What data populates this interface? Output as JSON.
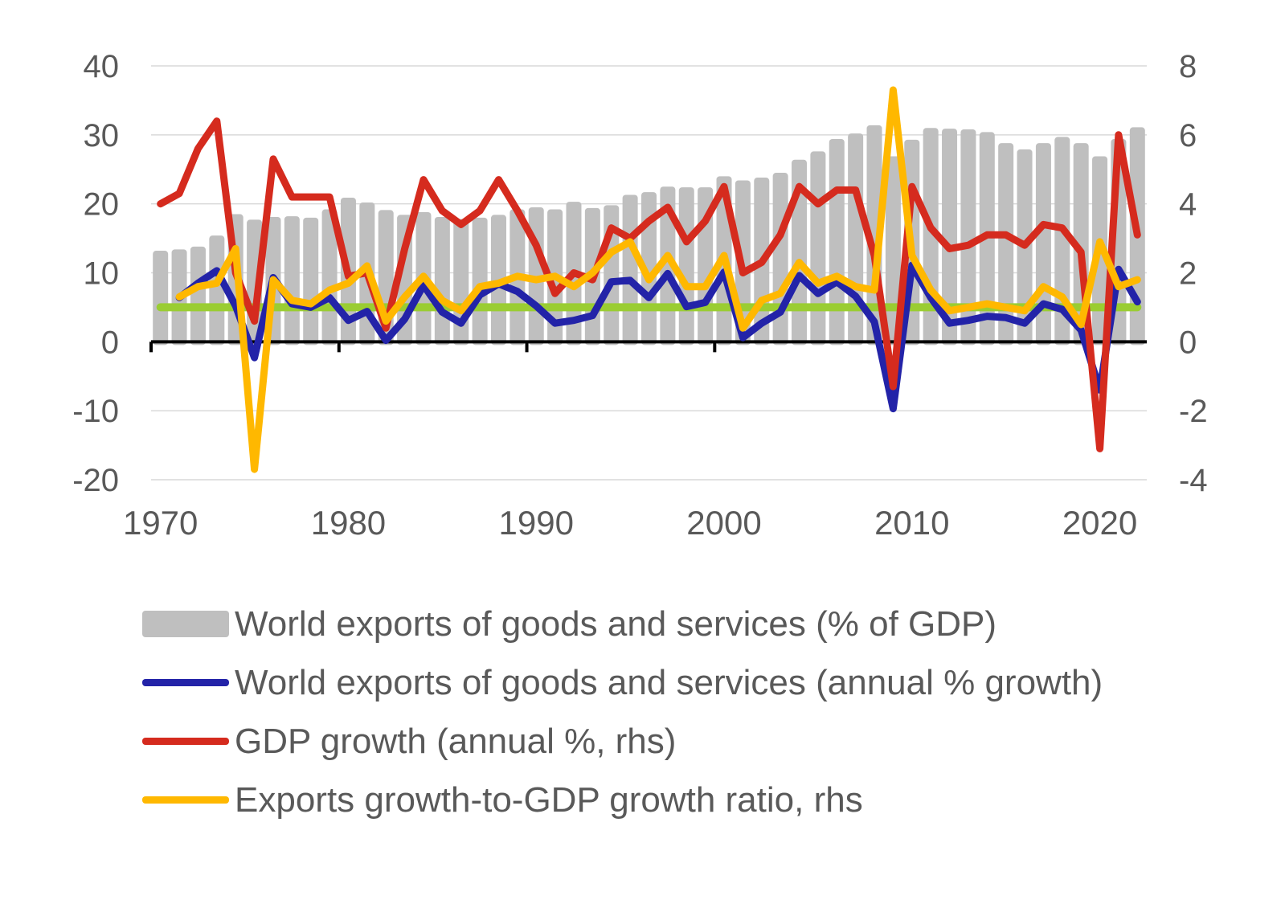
{
  "chart_data": {
    "type": "bar+line",
    "title": "",
    "xlabel": "",
    "ylabel": "",
    "y_left_lim": [
      -20,
      40
    ],
    "y_right_lim": [
      -4,
      8
    ],
    "y_left_ticks": [
      "40",
      "30",
      "20",
      "10",
      "0",
      "-10",
      "-20"
    ],
    "y_right_ticks": [
      "8",
      "6",
      "4",
      "2",
      "0",
      "-2",
      "-4"
    ],
    "x_tick_labels": [
      "1970",
      "1980",
      "1990",
      "2000",
      "2010",
      "2020"
    ],
    "grid": true,
    "legend_placement": "bottom",
    "years": [
      1970,
      1971,
      1972,
      1973,
      1974,
      1975,
      1976,
      1977,
      1978,
      1979,
      1980,
      1981,
      1982,
      1983,
      1984,
      1985,
      1986,
      1987,
      1988,
      1989,
      1990,
      1991,
      1992,
      1993,
      1994,
      1995,
      1996,
      1997,
      1998,
      1999,
      2000,
      2001,
      2002,
      2003,
      2004,
      2005,
      2006,
      2007,
      2008,
      2009,
      2010,
      2011,
      2012,
      2013,
      2014,
      2015,
      2016,
      2017,
      2018,
      2019,
      2020,
      2021,
      2022
    ],
    "series": [
      {
        "name": "World exports of goods and services (% of GDP)",
        "type": "bar",
        "axis": "left",
        "color": "#bfbfbf",
        "values": [
          13.2,
          13.4,
          13.8,
          15.4,
          18.5,
          17.7,
          18.1,
          18.2,
          18.0,
          19.2,
          20.9,
          20.2,
          19.1,
          18.4,
          18.8,
          18.1,
          17.8,
          18.0,
          18.4,
          19.2,
          19.5,
          19.2,
          20.3,
          19.4,
          19.8,
          21.3,
          21.7,
          22.5,
          22.4,
          22.4,
          24.0,
          23.4,
          23.8,
          24.5,
          26.4,
          27.6,
          29.4,
          30.2,
          31.4,
          26.9,
          29.3,
          31.0,
          30.9,
          30.8,
          30.4,
          28.8,
          27.9,
          28.8,
          29.7,
          28.8,
          26.9,
          29.4,
          31.1
        ]
      },
      {
        "name": "World exports of goods and services (annual % growth)",
        "type": "line",
        "axis": "left",
        "color": "#2323a8",
        "values": [
          null,
          6.4,
          8.5,
          10.3,
          5.2,
          -2.3,
          9.3,
          5.5,
          5.0,
          6.4,
          3.1,
          4.4,
          0.2,
          3.3,
          8.2,
          4.3,
          2.7,
          6.8,
          8.4,
          7.3,
          5.2,
          2.7,
          3.1,
          3.8,
          8.7,
          8.9,
          6.4,
          9.9,
          5.1,
          5.7,
          10.1,
          0.6,
          2.7,
          4.3,
          9.6,
          7.0,
          8.7,
          6.6,
          2.9,
          -9.7,
          11.1,
          6.4,
          2.7,
          3.1,
          3.7,
          3.5,
          2.7,
          5.5,
          4.7,
          1.7,
          -7.0,
          10.5,
          5.8
        ]
      },
      {
        "name": "GDP growth (annual %, rhs)",
        "type": "line",
        "axis": "right",
        "color": "#d52b1e",
        "values": [
          4.0,
          4.3,
          5.6,
          6.4,
          2.0,
          0.6,
          5.3,
          4.2,
          4.2,
          4.2,
          1.9,
          2.0,
          0.4,
          2.7,
          4.7,
          3.8,
          3.4,
          3.8,
          4.7,
          3.8,
          2.8,
          1.4,
          2.0,
          1.8,
          3.3,
          3.0,
          3.5,
          3.9,
          2.9,
          3.5,
          4.5,
          2.0,
          2.3,
          3.1,
          4.5,
          4.0,
          4.4,
          4.4,
          2.5,
          -1.3,
          4.5,
          3.3,
          2.7,
          2.8,
          3.1,
          3.1,
          2.8,
          3.4,
          3.3,
          2.6,
          -3.1,
          6.0,
          3.1
        ]
      },
      {
        "name": "Exports growth-to-GDP growth ratio, rhs",
        "type": "line",
        "axis": "right",
        "color": "#ffb800",
        "values": [
          null,
          1.3,
          1.6,
          1.7,
          2.7,
          -3.7,
          1.8,
          1.2,
          1.1,
          1.5,
          1.7,
          2.2,
          0.6,
          1.3,
          1.9,
          1.2,
          0.9,
          1.6,
          1.7,
          1.9,
          1.8,
          1.9,
          1.6,
          2.0,
          2.6,
          2.9,
          1.8,
          2.5,
          1.6,
          1.6,
          2.5,
          0.4,
          1.2,
          1.4,
          2.3,
          1.7,
          1.9,
          1.6,
          1.5,
          7.3,
          2.5,
          1.5,
          0.9,
          1.0,
          1.1,
          1.0,
          0.9,
          1.6,
          1.3,
          0.5,
          2.9,
          1.6,
          1.8
        ]
      },
      {
        "name": "Reference ratio = 1",
        "type": "line",
        "axis": "right",
        "color": "#9acd32",
        "legend": false,
        "values": [
          1,
          1,
          1,
          1,
          1,
          1,
          1,
          1,
          1,
          1,
          1,
          1,
          1,
          1,
          1,
          1,
          1,
          1,
          1,
          1,
          1,
          1,
          1,
          1,
          1,
          1,
          1,
          1,
          1,
          1,
          1,
          1,
          1,
          1,
          1,
          1,
          1,
          1,
          1,
          1,
          1,
          1,
          1,
          1,
          1,
          1,
          1,
          1,
          1,
          1,
          1,
          1,
          1
        ]
      }
    ]
  },
  "legend": [
    {
      "label": "World exports of goods and services (% of GDP)",
      "color": "#bfbfbf",
      "kind": "bar"
    },
    {
      "label": "World exports of goods and services (annual % growth)",
      "color": "#2323a8",
      "kind": "line"
    },
    {
      "label": "GDP growth (annual %, rhs)",
      "color": "#d52b1e",
      "kind": "line"
    },
    {
      "label": "Exports growth-to-GDP growth ratio, rhs",
      "color": "#ffb800",
      "kind": "line"
    }
  ]
}
